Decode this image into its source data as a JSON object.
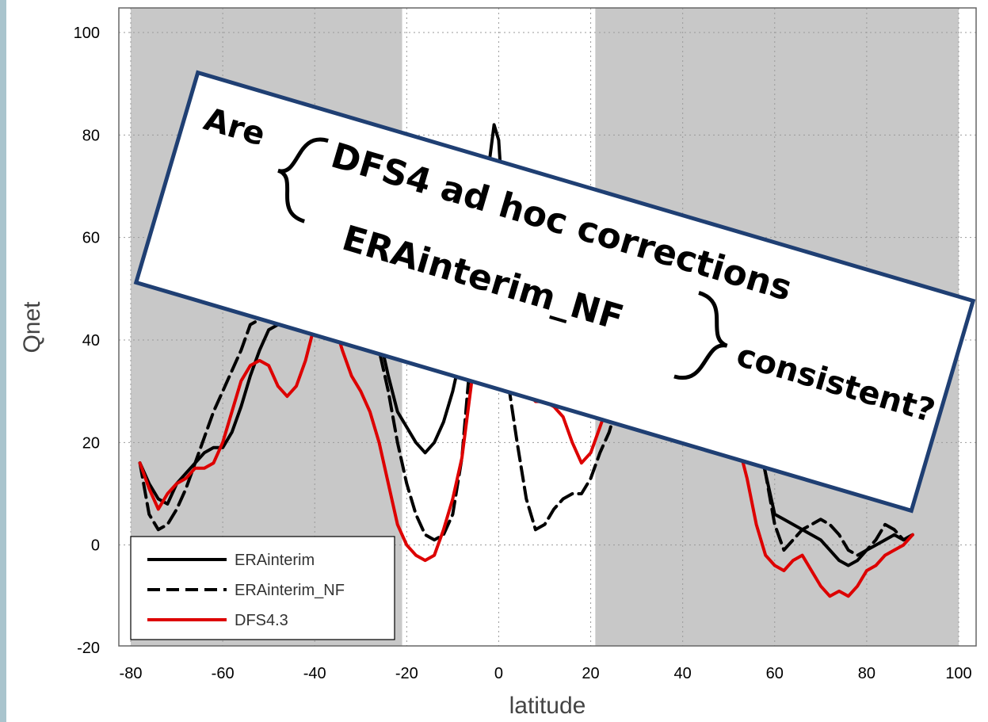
{
  "chart_data": {
    "type": "line",
    "xlabel": "latitude",
    "ylabel": "Qnet",
    "xlim": [
      -80,
      100
    ],
    "ylim": [
      -20,
      100
    ],
    "x_ticks": [
      -80,
      -60,
      -40,
      -20,
      0,
      20,
      40,
      60,
      80,
      100
    ],
    "y_ticks": [
      -20,
      0,
      20,
      40,
      60,
      80,
      100
    ],
    "grid": true,
    "legend_position": "bottom-left",
    "shaded_regions": [
      {
        "x_from": -80,
        "x_to": -21,
        "color": "#c8c8c8"
      },
      {
        "x_from": 21,
        "x_to": 100,
        "color": "#c8c8c8"
      }
    ],
    "series": [
      {
        "name": "ERAinterim",
        "color": "#000000",
        "dashed": false,
        "x": [
          -78,
          -76,
          -74,
          -72,
          -70,
          -68,
          -66,
          -64,
          -62,
          -60,
          -58,
          -56,
          -54,
          -52,
          -50,
          -48,
          -46,
          -44,
          -42,
          -40,
          -38,
          -36,
          -34,
          -32,
          -30,
          -28,
          -26,
          -24,
          -22,
          -20,
          -18,
          -16,
          -14,
          -12,
          -10,
          -8,
          -6,
          -4,
          -2,
          -1,
          0,
          1,
          2,
          4,
          6,
          8,
          10,
          12,
          14,
          16,
          18,
          20,
          22,
          24,
          26,
          28,
          30,
          32,
          34,
          36,
          38,
          40,
          42,
          44,
          46,
          48,
          50,
          52,
          54,
          56,
          58,
          60,
          62,
          64,
          66,
          68,
          70,
          72,
          74,
          76,
          78,
          80,
          82,
          84,
          86,
          88,
          90
        ],
        "y": [
          16,
          12,
          9,
          8,
          12,
          14,
          16,
          18,
          19,
          19,
          22,
          27,
          33,
          38,
          42,
          43,
          44,
          42,
          44,
          48,
          52,
          50,
          45,
          46,
          44,
          46,
          41,
          33,
          26,
          23,
          20,
          18,
          20,
          24,
          30,
          38,
          50,
          63,
          75,
          82,
          79,
          65,
          52,
          40,
          33,
          36,
          42,
          46,
          48,
          45,
          40,
          36,
          34,
          35,
          38,
          41,
          44,
          46,
          47,
          49,
          48,
          46,
          48,
          52,
          53,
          48,
          40,
          33,
          28,
          22,
          14,
          6,
          5,
          4,
          3,
          2,
          1,
          -1,
          -3,
          -4,
          -3,
          -1,
          0,
          1,
          2,
          1,
          2
        ]
      },
      {
        "name": "ERAinterim_NF",
        "color": "#000000",
        "dashed": true,
        "x": [
          -78,
          -76,
          -74,
          -72,
          -70,
          -68,
          -66,
          -64,
          -62,
          -60,
          -58,
          -56,
          -54,
          -52,
          -50,
          -48,
          -46,
          -44,
          -42,
          -40,
          -38,
          -36,
          -34,
          -32,
          -30,
          -28,
          -26,
          -24,
          -22,
          -20,
          -18,
          -16,
          -14,
          -12,
          -10,
          -8,
          -6,
          -4,
          -2,
          0,
          2,
          4,
          6,
          8,
          10,
          12,
          14,
          16,
          18,
          20,
          22,
          24,
          26,
          28,
          30,
          32,
          34,
          36,
          38,
          40,
          42,
          44,
          46,
          48,
          50,
          52,
          54,
          56,
          58,
          60,
          62,
          64,
          66,
          68,
          70,
          72,
          74,
          76,
          78,
          80,
          82,
          84,
          86,
          88,
          90
        ],
        "y": [
          16,
          6,
          3,
          4,
          7,
          11,
          16,
          21,
          26,
          30,
          34,
          38,
          43,
          44,
          45,
          46,
          44,
          46,
          47,
          49,
          51,
          49,
          48,
          48,
          47,
          43,
          38,
          30,
          20,
          12,
          6,
          2,
          1,
          2,
          6,
          17,
          38,
          50,
          46,
          40,
          32,
          20,
          9,
          3,
          4,
          7,
          9,
          10,
          10,
          13,
          18,
          22,
          28,
          34,
          38,
          42,
          44,
          46,
          45,
          46,
          44,
          43,
          46,
          47,
          45,
          38,
          30,
          23,
          14,
          4,
          -1,
          1,
          3,
          4,
          5,
          4,
          2,
          -1,
          -2,
          -1,
          1,
          4,
          3,
          1,
          2
        ]
      },
      {
        "name": "DFS4.3",
        "color": "#dd0000",
        "dashed": false,
        "x": [
          -78,
          -76,
          -74,
          -72,
          -70,
          -68,
          -66,
          -64,
          -62,
          -60,
          -58,
          -56,
          -54,
          -52,
          -50,
          -48,
          -46,
          -44,
          -42,
          -40,
          -38,
          -36,
          -34,
          -32,
          -30,
          -28,
          -26,
          -24,
          -22,
          -20,
          -18,
          -16,
          -14,
          -12,
          -10,
          -8,
          -6,
          -4,
          -2,
          0,
          2,
          4,
          6,
          8,
          10,
          12,
          14,
          16,
          18,
          20,
          22,
          24,
          26,
          28,
          30,
          32,
          34,
          36,
          38,
          40,
          42,
          44,
          46,
          48,
          50,
          52,
          54,
          56,
          58,
          60,
          62,
          64,
          66,
          68,
          70,
          72,
          74,
          76,
          78,
          80,
          82,
          84,
          86,
          88,
          90
        ],
        "y": [
          16,
          11,
          7,
          10,
          12,
          13,
          15,
          15,
          16,
          20,
          26,
          32,
          35,
          36,
          35,
          31,
          29,
          31,
          36,
          43,
          46,
          44,
          38,
          33,
          30,
          26,
          20,
          12,
          4,
          0,
          -2,
          -3,
          -2,
          3,
          9,
          17,
          31,
          46,
          52,
          50,
          40,
          33,
          30,
          28,
          28,
          27,
          25,
          20,
          16,
          18,
          23,
          28,
          33,
          38,
          42,
          44,
          45,
          46,
          44,
          43,
          44,
          45,
          42,
          36,
          28,
          20,
          13,
          4,
          -2,
          -4,
          -5,
          -3,
          -2,
          -5,
          -8,
          -10,
          -9,
          -10,
          -8,
          -5,
          -4,
          -2,
          -1,
          0,
          2
        ]
      }
    ],
    "legend": [
      "ERAinterim",
      "ERAinterim_NF",
      "DFS4.3"
    ],
    "annotation": {
      "are": "Are",
      "line1": "DFS4 ad hoc corrections",
      "line2": "ERAinterim_NF",
      "consistent": "consistent?"
    }
  },
  "colors": {
    "shade": "#c8c8c8",
    "border": "#a6bcc6",
    "callout_border": "#1f3f73",
    "grid": "#9a9a9a"
  }
}
